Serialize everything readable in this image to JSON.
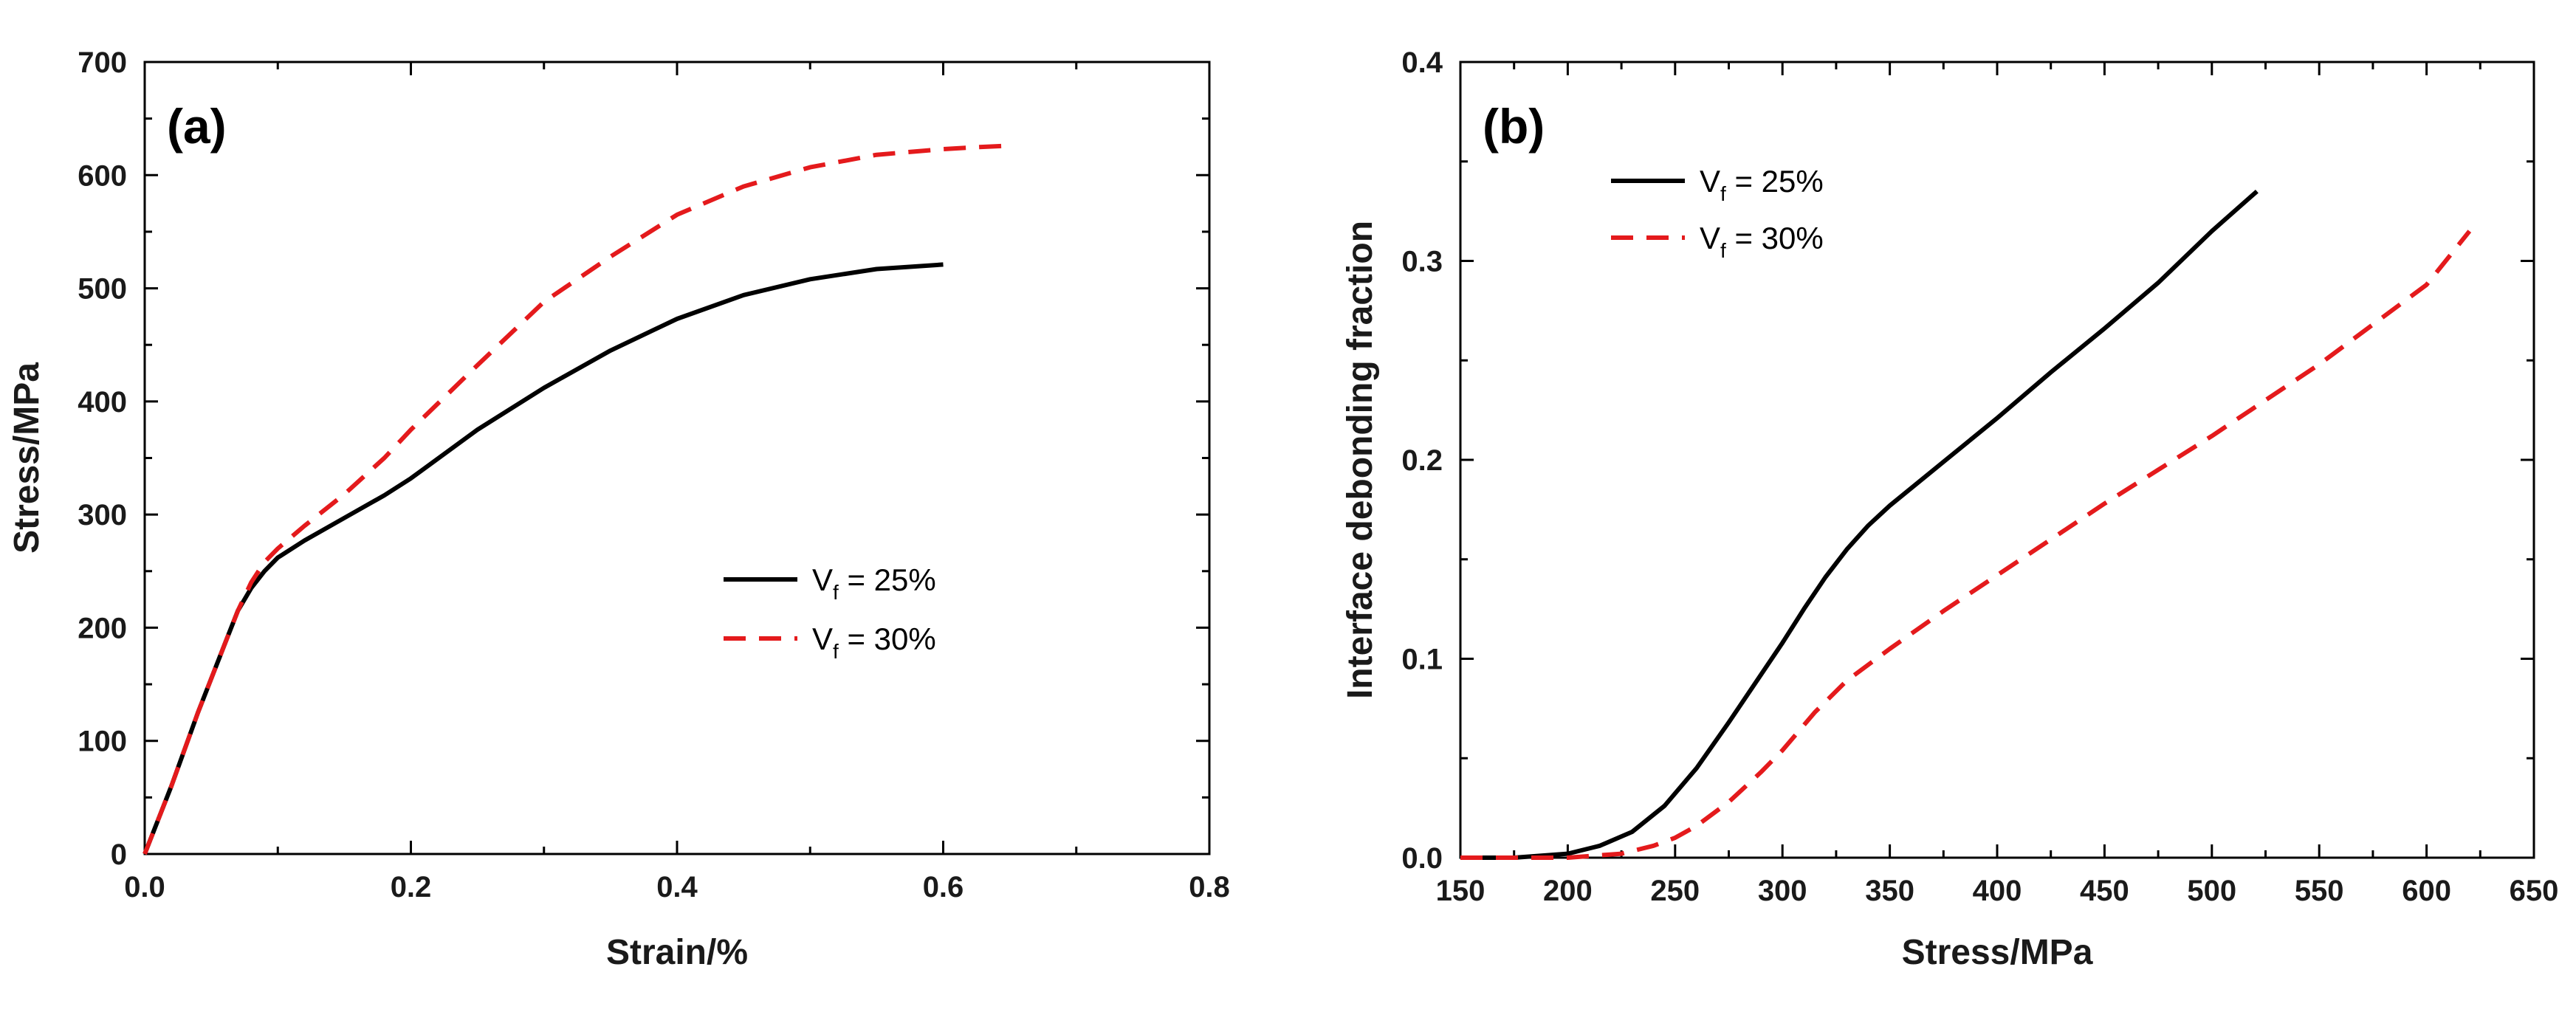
{
  "chart_data": [
    {
      "type": "line",
      "panel_label": "(a)",
      "xlabel": "Strain/%",
      "ylabel": "Stress/MPa",
      "xlim": [
        0.0,
        0.8
      ],
      "ylim": [
        0,
        700
      ],
      "xticks": [
        0.0,
        0.2,
        0.4,
        0.6,
        0.8
      ],
      "xtick_labels": [
        "0.0",
        "0.2",
        "0.4",
        "0.6",
        "0.8"
      ],
      "yticks": [
        0,
        100,
        200,
        300,
        400,
        500,
        600,
        700
      ],
      "ytick_labels": [
        "0",
        "100",
        "200",
        "300",
        "400",
        "500",
        "600",
        "700"
      ],
      "grid": false,
      "legend_position": "center-right",
      "series": [
        {
          "name": "Vf = 25%",
          "label_main": "V",
          "label_sub": "f",
          "label_rest": " = 25%",
          "color": "#000000",
          "dash": "solid",
          "x": [
            0.0,
            0.02,
            0.04,
            0.06,
            0.07,
            0.08,
            0.09,
            0.1,
            0.12,
            0.15,
            0.18,
            0.2,
            0.25,
            0.3,
            0.35,
            0.4,
            0.45,
            0.5,
            0.55,
            0.6
          ],
          "y": [
            0,
            60,
            125,
            185,
            215,
            235,
            250,
            262,
            277,
            297,
            317,
            332,
            375,
            412,
            445,
            473,
            494,
            508,
            517,
            521
          ]
        },
        {
          "name": "Vf = 30%",
          "label_main": "V",
          "label_sub": "f",
          "label_rest": " = 30%",
          "color": "#e41a1c",
          "dash": "dashed",
          "x": [
            0.0,
            0.02,
            0.04,
            0.06,
            0.07,
            0.08,
            0.09,
            0.1,
            0.12,
            0.15,
            0.18,
            0.2,
            0.25,
            0.3,
            0.35,
            0.4,
            0.45,
            0.5,
            0.55,
            0.6,
            0.63,
            0.65
          ],
          "y": [
            0,
            60,
            125,
            185,
            215,
            240,
            258,
            270,
            290,
            318,
            350,
            375,
            432,
            488,
            528,
            565,
            590,
            607,
            618,
            623,
            625,
            626
          ]
        }
      ]
    },
    {
      "type": "line",
      "panel_label": "(b)",
      "xlabel": "Stress/MPa",
      "ylabel": "Interface debonding fraction",
      "xlim": [
        150,
        650
      ],
      "ylim": [
        0.0,
        0.4
      ],
      "xticks": [
        150,
        200,
        250,
        300,
        350,
        400,
        450,
        500,
        550,
        600,
        650
      ],
      "xtick_labels": [
        "150",
        "200",
        "250",
        "300",
        "350",
        "400",
        "450",
        "500",
        "550",
        "600",
        "650"
      ],
      "yticks": [
        0.0,
        0.1,
        0.2,
        0.3,
        0.4
      ],
      "ytick_labels": [
        "0.0",
        "0.1",
        "0.2",
        "0.3",
        "0.4"
      ],
      "grid": false,
      "legend_position": "top-left",
      "series": [
        {
          "name": "Vf = 25%",
          "label_main": "V",
          "label_sub": "f",
          "label_rest": " = 25%",
          "color": "#000000",
          "dash": "solid",
          "x": [
            150,
            175,
            200,
            215,
            230,
            245,
            260,
            275,
            290,
            300,
            310,
            320,
            330,
            340,
            350,
            375,
            400,
            425,
            450,
            475,
            500,
            521
          ],
          "y": [
            0.0,
            0.0,
            0.002,
            0.006,
            0.013,
            0.026,
            0.045,
            0.068,
            0.092,
            0.108,
            0.125,
            0.141,
            0.155,
            0.167,
            0.177,
            0.199,
            0.221,
            0.244,
            0.266,
            0.289,
            0.315,
            0.335
          ]
        },
        {
          "name": "Vf = 30%",
          "label_main": "V",
          "label_sub": "f",
          "label_rest": " = 30%",
          "color": "#e41a1c",
          "dash": "dashed",
          "x": [
            150,
            200,
            225,
            240,
            250,
            260,
            275,
            290,
            300,
            315,
            330,
            350,
            375,
            400,
            450,
            500,
            550,
            600,
            620
          ],
          "y": [
            0.0,
            0.0,
            0.002,
            0.006,
            0.01,
            0.016,
            0.028,
            0.043,
            0.054,
            0.073,
            0.089,
            0.105,
            0.124,
            0.142,
            0.178,
            0.212,
            0.248,
            0.288,
            0.315
          ]
        }
      ]
    }
  ]
}
